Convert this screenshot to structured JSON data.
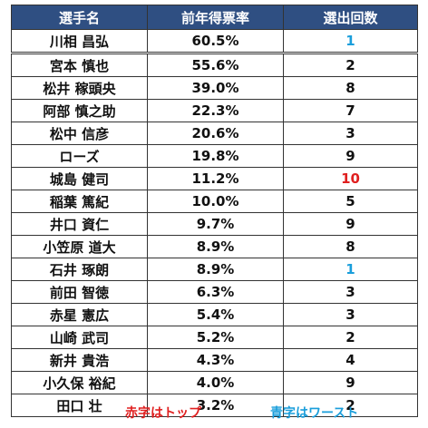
{
  "header": {
    "name": "選手名",
    "rate": "前年得票率",
    "count": "選出回数"
  },
  "colors": {
    "header_bg": "#2f4f82",
    "top": "#e02020",
    "worst": "#1a9edb",
    "normal": "#111111"
  },
  "rows": [
    {
      "name": "川相 昌弘",
      "rate": "60.5%",
      "count": "1",
      "mark": "worst"
    },
    {
      "name": "宮本 慎也",
      "rate": "55.6%",
      "count": "2",
      "mark": ""
    },
    {
      "name": "松井 稼頭央",
      "rate": "39.0%",
      "count": "8",
      "mark": ""
    },
    {
      "name": "阿部 慎之助",
      "rate": "22.3%",
      "count": "7",
      "mark": ""
    },
    {
      "name": "松中 信彦",
      "rate": "20.6%",
      "count": "3",
      "mark": ""
    },
    {
      "name": "ローズ",
      "rate": "19.8%",
      "count": "9",
      "mark": ""
    },
    {
      "name": "城島 健司",
      "rate": "11.2%",
      "count": "10",
      "mark": "top"
    },
    {
      "name": "稲葉 篤紀",
      "rate": "10.0%",
      "count": "5",
      "mark": ""
    },
    {
      "name": "井口 資仁",
      "rate": "9.7%",
      "count": "9",
      "mark": ""
    },
    {
      "name": "小笠原 道大",
      "rate": "8.9%",
      "count": "8",
      "mark": ""
    },
    {
      "name": "石井 琢朗",
      "rate": "8.9%",
      "count": "1",
      "mark": "worst"
    },
    {
      "name": "前田 智徳",
      "rate": "6.3%",
      "count": "3",
      "mark": ""
    },
    {
      "name": "赤星 憲広",
      "rate": "5.4%",
      "count": "3",
      "mark": ""
    },
    {
      "name": "山崎 武司",
      "rate": "5.2%",
      "count": "2",
      "mark": ""
    },
    {
      "name": "新井 貴浩",
      "rate": "4.3%",
      "count": "4",
      "mark": ""
    },
    {
      "name": "小久保 裕紀",
      "rate": "4.0%",
      "count": "9",
      "mark": ""
    },
    {
      "name": "田口 壮",
      "rate": "3.2%",
      "count": "2",
      "mark": ""
    }
  ],
  "legend": {
    "red_text": "赤字はトップ",
    "blue_text": "青字はワースト"
  }
}
